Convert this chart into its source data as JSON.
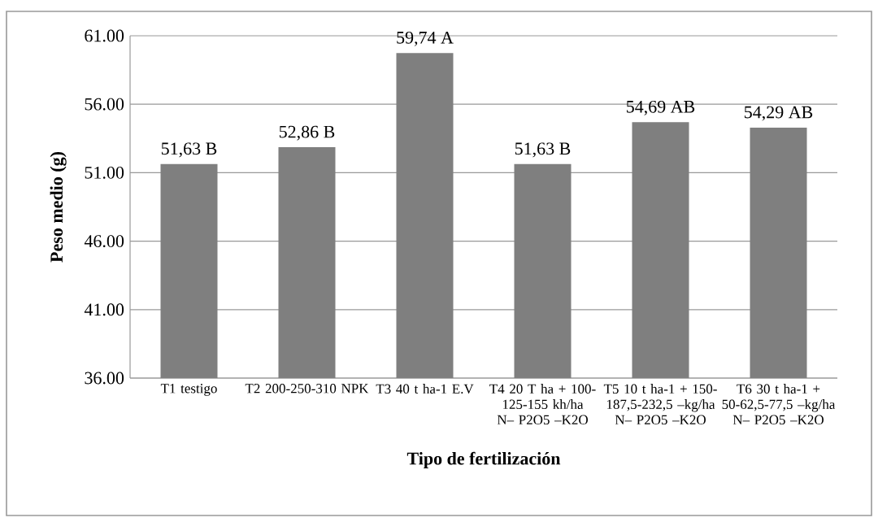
{
  "chart_data": {
    "type": "bar",
    "xlabel": "Tipo de fertilización",
    "ylabel": "Peso medio (g)",
    "categories": [
      "T1 testigo",
      "T2 200-250-310 NPK",
      "T3 40 t ha-1 E.V",
      "T4 20 T ha + 100-125-155 kh/ha N– P2O5 –K2O",
      "T5 10 t ha-1 + 150-187,5-232,5 –kg/ha N– P2O5 –K2O",
      "T6 30 t ha-1 + 50-62,5-77,5 –kg/ha N– P2O5 –K2O"
    ],
    "values": [
      51.63,
      52.86,
      59.74,
      51.63,
      54.69,
      54.29
    ],
    "value_labels": [
      "51,63 B",
      "52,86 B",
      "59,74 A",
      "51,63 B",
      "54,69 AB",
      "54,29 AB"
    ],
    "color": "#7f7f7f",
    "ylim": [
      36,
      61
    ],
    "yticks": [
      {
        "value": 36,
        "label": "36.00"
      },
      {
        "value": 41,
        "label": "41.00"
      },
      {
        "value": 46,
        "label": "46.00"
      },
      {
        "value": 51,
        "label": "51.00"
      },
      {
        "value": 56,
        "label": "56.00"
      },
      {
        "value": 61,
        "label": "61.00"
      }
    ],
    "grid": "y"
  }
}
